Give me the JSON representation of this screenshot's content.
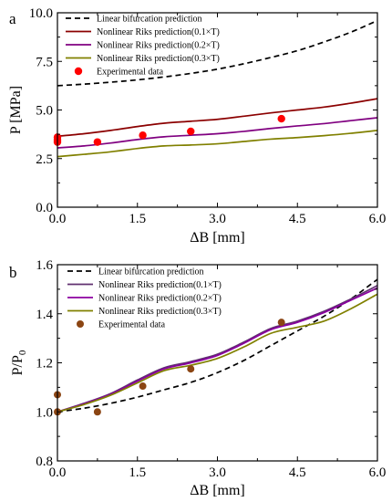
{
  "chart_data": [
    {
      "panel_label": "a",
      "type": "line",
      "xlabel": "ΔB [mm]",
      "ylabel": "P [MPa]",
      "xlim": [
        0,
        6
      ],
      "ylim": [
        0,
        10
      ],
      "x_ticks": [
        "0.0",
        "1.5",
        "3.0",
        "4.5",
        "6.0"
      ],
      "y_ticks": [
        "0.0",
        "2.5",
        "5.0",
        "7.5",
        "10.0"
      ],
      "legend_position": "top-left",
      "grid": false,
      "series": [
        {
          "name": "Linear bifurcation prediction",
          "style": "dashed",
          "color": "#000000",
          "x": [
            0,
            0.5,
            1,
            1.5,
            2,
            2.5,
            3,
            3.5,
            4,
            4.5,
            5,
            5.5,
            6
          ],
          "y": [
            6.25,
            6.33,
            6.43,
            6.55,
            6.7,
            6.88,
            7.1,
            7.38,
            7.7,
            8.05,
            8.5,
            9.0,
            9.6
          ]
        },
        {
          "name": "Nonlinear Riks prediction(0.1×T)",
          "style": "solid",
          "color": "#8b0000",
          "x": [
            0,
            0.5,
            1,
            1.5,
            2,
            2.5,
            3,
            3.5,
            4,
            4.5,
            5,
            5.5,
            6
          ],
          "y": [
            3.65,
            3.78,
            3.95,
            4.15,
            4.32,
            4.42,
            4.52,
            4.68,
            4.85,
            5.0,
            5.15,
            5.35,
            5.58
          ]
        },
        {
          "name": "Nonlinear Riks prediction(0.2×T)",
          "style": "solid",
          "color": "#800080",
          "x": [
            0,
            0.5,
            1,
            1.5,
            2,
            2.5,
            3,
            3.5,
            4,
            4.5,
            5,
            5.5,
            6
          ],
          "y": [
            3.05,
            3.15,
            3.3,
            3.48,
            3.62,
            3.7,
            3.78,
            3.9,
            4.05,
            4.18,
            4.3,
            4.45,
            4.6
          ]
        },
        {
          "name": "Nonlinear Riks prediction(0.3×T)",
          "style": "solid",
          "color": "#808000",
          "x": [
            0,
            0.5,
            1,
            1.5,
            2,
            2.5,
            3,
            3.5,
            4,
            4.5,
            5,
            5.5,
            6
          ],
          "y": [
            2.6,
            2.72,
            2.85,
            3.02,
            3.15,
            3.2,
            3.26,
            3.38,
            3.5,
            3.58,
            3.68,
            3.8,
            3.95
          ]
        },
        {
          "name": "Experimental data",
          "style": "markers",
          "color": "#ff0000",
          "x": [
            0.0,
            0.0,
            0.0,
            0.75,
            1.6,
            2.5,
            4.2
          ],
          "y": [
            3.6,
            3.45,
            3.35,
            3.35,
            3.7,
            3.9,
            4.55
          ]
        }
      ]
    },
    {
      "panel_label": "b",
      "type": "line",
      "xlabel": "ΔB [mm]",
      "ylabel": "P/P",
      "ylabel_sub": "0",
      "xlim": [
        0,
        6
      ],
      "ylim": [
        0.8,
        1.6
      ],
      "x_ticks": [
        "0.0",
        "1.5",
        "3.0",
        "4.5",
        "6.0"
      ],
      "y_ticks": [
        "0.8",
        "1.0",
        "1.2",
        "1.4",
        "1.6"
      ],
      "legend_position": "top-left",
      "grid": false,
      "series": [
        {
          "name": "Linear bifurcation prediction",
          "style": "dashed",
          "color": "#000000",
          "x": [
            0,
            0.5,
            1,
            1.5,
            2,
            2.5,
            3,
            3.5,
            4,
            4.5,
            5,
            5.5,
            6
          ],
          "y": [
            1.0,
            1.015,
            1.035,
            1.06,
            1.09,
            1.12,
            1.16,
            1.21,
            1.27,
            1.33,
            1.39,
            1.46,
            1.54
          ]
        },
        {
          "name": "Nonlinear Riks prediction(0.1×T)",
          "style": "solid",
          "color": "#603070",
          "x": [
            0,
            0.5,
            1,
            1.5,
            2,
            2.5,
            3,
            3.5,
            4,
            4.5,
            5,
            5.5,
            6
          ],
          "y": [
            1.0,
            1.035,
            1.075,
            1.13,
            1.18,
            1.205,
            1.235,
            1.285,
            1.34,
            1.37,
            1.41,
            1.46,
            1.515
          ]
        },
        {
          "name": "Nonlinear Riks prediction(0.2×T)",
          "style": "solid",
          "color": "#8b00a0",
          "x": [
            0,
            0.5,
            1,
            1.5,
            2,
            2.5,
            3,
            3.5,
            4,
            4.5,
            5,
            5.5,
            6
          ],
          "y": [
            1.0,
            1.033,
            1.072,
            1.125,
            1.175,
            1.2,
            1.23,
            1.28,
            1.335,
            1.365,
            1.405,
            1.455,
            1.505
          ]
        },
        {
          "name": "Nonlinear Riks prediction(0.3×T)",
          "style": "solid",
          "color": "#808000",
          "x": [
            0,
            0.5,
            1,
            1.5,
            2,
            2.5,
            3,
            3.5,
            4,
            4.5,
            5,
            5.5,
            6
          ],
          "y": [
            1.0,
            1.03,
            1.068,
            1.118,
            1.168,
            1.19,
            1.218,
            1.265,
            1.32,
            1.345,
            1.37,
            1.42,
            1.48
          ]
        },
        {
          "name": "Experimental data",
          "style": "markers",
          "color": "#8b4513",
          "x": [
            0.0,
            0.0,
            0.75,
            1.6,
            2.5,
            4.2
          ],
          "y": [
            1.0,
            1.07,
            1.0,
            1.105,
            1.175,
            1.365
          ]
        }
      ]
    }
  ]
}
